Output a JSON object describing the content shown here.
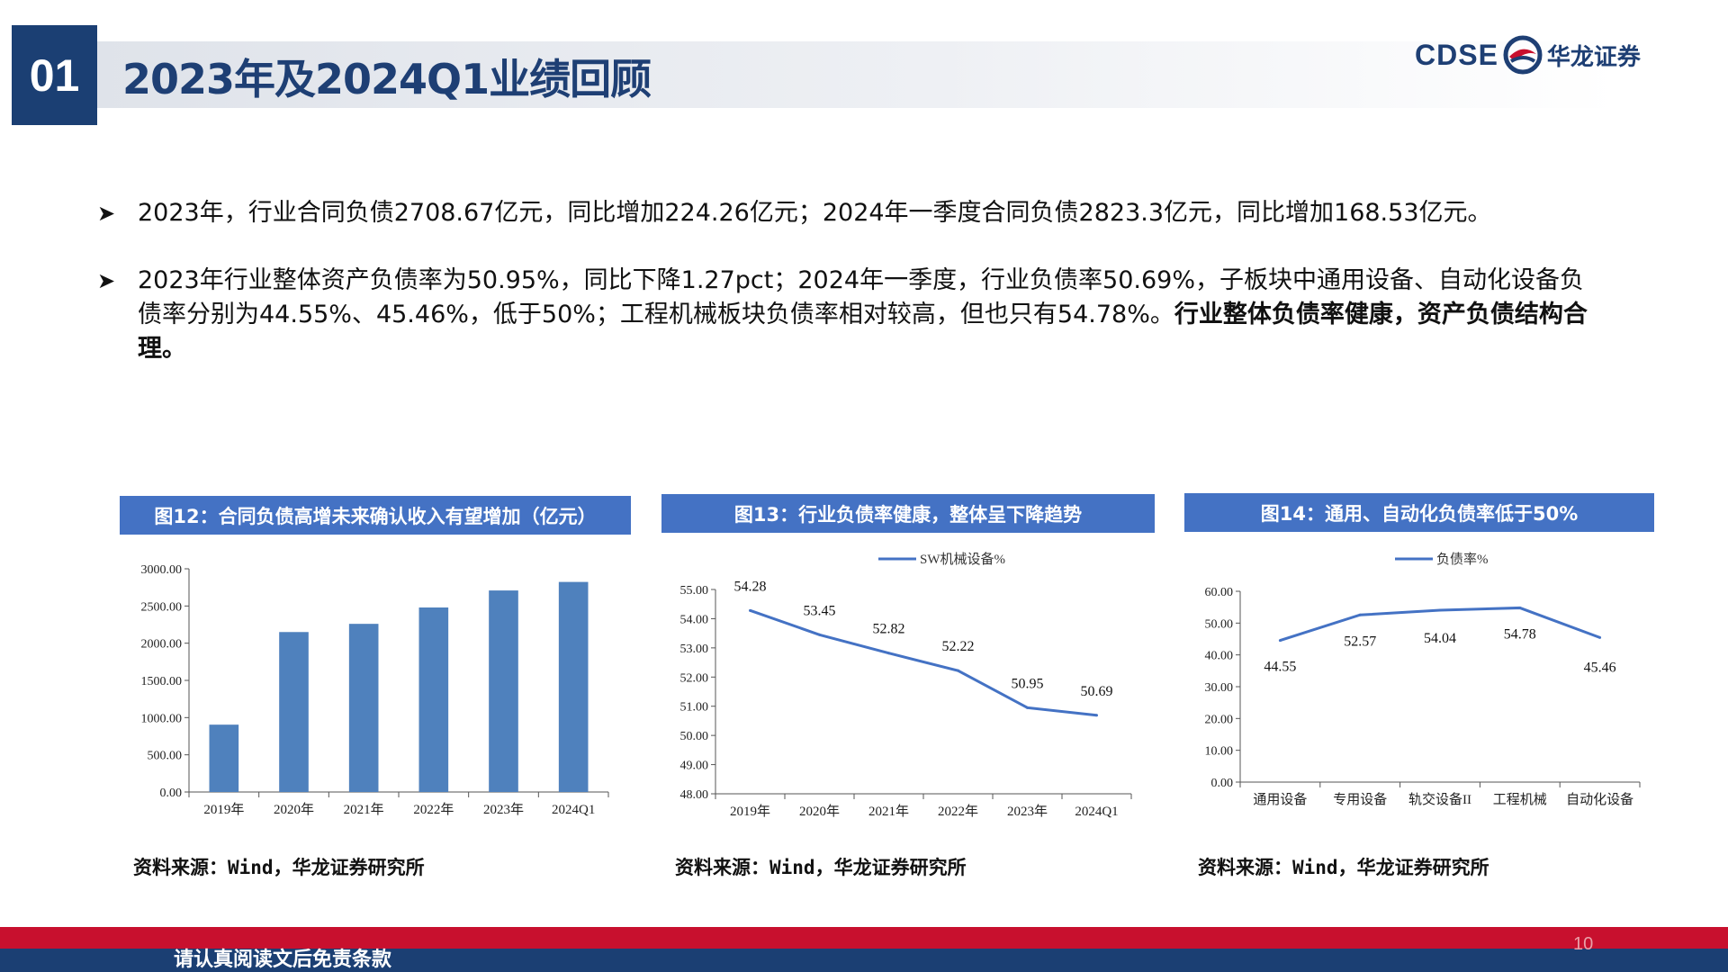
{
  "header": {
    "section_number": "01",
    "title": "2023年及2024Q1业绩回顾",
    "logo_text_en": "CDSE",
    "logo_text_cn": "华龙证券",
    "logo_icon": "cdse-logo-icon"
  },
  "bullets": [
    {
      "text": "2023年，行业合同负债2708.67亿元，同比增加224.26亿元；2024年一季度合同负债2823.3亿元，同比增加168.53亿元。",
      "bold_text": ""
    },
    {
      "text": "2023年行业整体资产负债率为50.95%，同比下降1.27pct；2024年一季度，行业负债率50.69%，子板块中通用设备、自动化设备负债率分别为44.55%、45.46%，低于50%；工程机械板块负债率相对较高，但也只有54.78%。",
      "bold_text": "行业整体负债率健康，资产负债结构合理。"
    }
  ],
  "bullet_icon": "arrowhead-bullet-icon",
  "figures": [
    {
      "title": "图12：合同负债高增未来确认收入有望增加（亿元）",
      "source": "资料来源：Wind，华龙证券研究所"
    },
    {
      "title": "图13：行业负债率健康，整体呈下降趋势",
      "source": "资料来源：Wind，华龙证券研究所"
    },
    {
      "title": "图14：通用、自动化负债率低于50%",
      "source": "资料来源：Wind，华龙证券研究所"
    }
  ],
  "chart_data": [
    {
      "type": "bar",
      "categories": [
        "2019年",
        "2020年",
        "2021年",
        "2022年",
        "2023年",
        "2024Q1"
      ],
      "values": [
        905,
        2150,
        2260,
        2480,
        2708.67,
        2823.3
      ],
      "ylim": [
        0,
        3000
      ],
      "yticks": [
        "0.00",
        "500.00",
        "1000.00",
        "1500.00",
        "2000.00",
        "2500.00",
        "3000.00"
      ],
      "color": "#4f81bd",
      "legend": ""
    },
    {
      "type": "line",
      "categories": [
        "2019年",
        "2020年",
        "2021年",
        "2022年",
        "2023年",
        "2024Q1"
      ],
      "values": [
        54.28,
        53.45,
        52.82,
        52.22,
        50.95,
        50.69
      ],
      "labels": [
        "54.28",
        "53.45",
        "52.82",
        "52.22",
        "50.95",
        "50.69"
      ],
      "ylim": [
        48,
        55
      ],
      "yticks": [
        "48.00",
        "49.00",
        "50.00",
        "51.00",
        "52.00",
        "53.00",
        "54.00",
        "55.00"
      ],
      "color": "#4472c4",
      "legend": "SW机械设备%",
      "legend_position": "top-center"
    },
    {
      "type": "line",
      "categories": [
        "通用设备",
        "专用设备",
        "轨交设备II",
        "工程机械",
        "自动化设备"
      ],
      "values": [
        44.55,
        52.57,
        54.04,
        54.78,
        45.46
      ],
      "labels": [
        "44.55",
        "52.57",
        "54.04",
        "54.78",
        "45.46"
      ],
      "ylim": [
        0,
        60
      ],
      "yticks": [
        "0.00",
        "10.00",
        "20.00",
        "30.00",
        "40.00",
        "50.00",
        "60.00"
      ],
      "color": "#4472c4",
      "legend": "负债率%",
      "legend_position": "top-center"
    }
  ],
  "footer": {
    "disclaimer": "请认真阅读文后免责条款",
    "page_number": "10"
  }
}
